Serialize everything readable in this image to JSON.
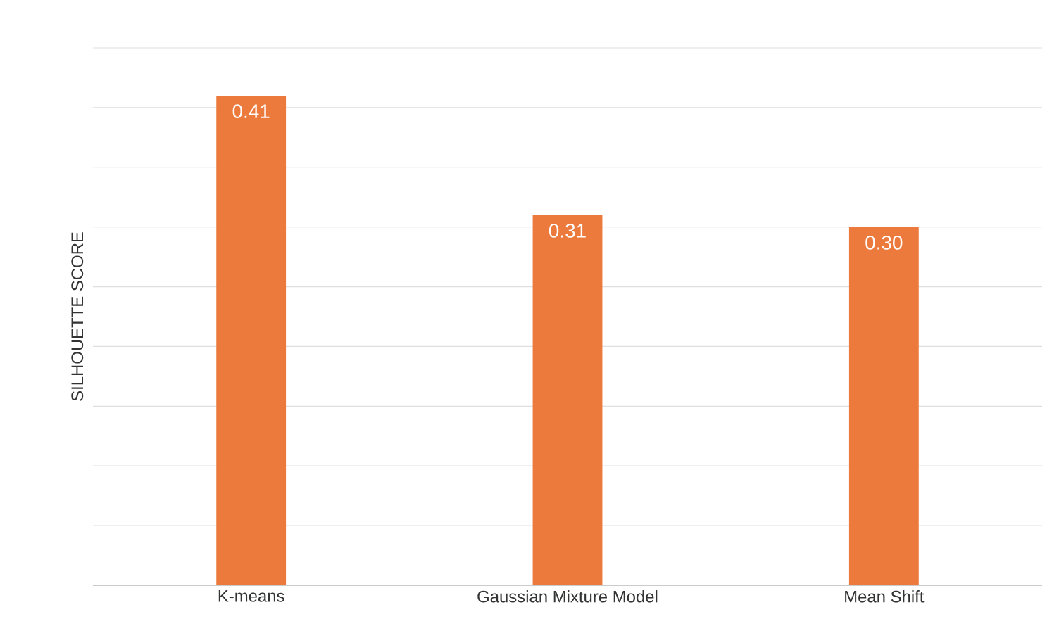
{
  "chart_data": {
    "type": "bar",
    "ylabel": "SILHOUETTE SCORE",
    "categories": [
      "K-means",
      "Gaussian Mixture Model",
      "Mean Shift"
    ],
    "values": [
      0.41,
      0.31,
      0.3
    ],
    "value_labels": [
      "0.41",
      "0.31",
      "0.30"
    ],
    "color": "#ec7a3c",
    "ylim": [
      0,
      0.45
    ],
    "yticks": [
      {
        "value": 0,
        "label": null
      },
      {
        "value": 0.05,
        "label": null
      },
      {
        "value": 0.1,
        "label": null
      },
      {
        "value": 0.15,
        "label": null
      },
      {
        "value": 0.2,
        "label": null
      },
      {
        "value": 0.25,
        "label": null
      },
      {
        "value": 0.3,
        "label": null
      },
      {
        "value": 0.35,
        "label": null
      },
      {
        "value": 0.4,
        "label": null
      },
      {
        "value": 0.45,
        "label": null
      }
    ],
    "grid": "y",
    "tick_labels": "x"
  }
}
